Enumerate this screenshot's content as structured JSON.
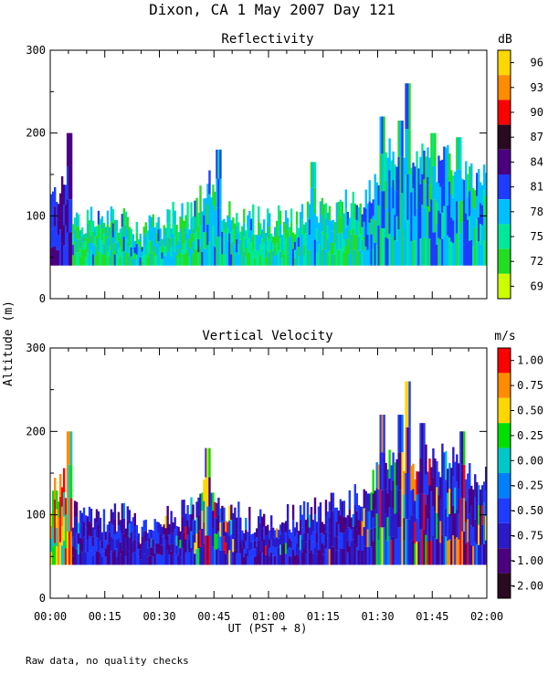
{
  "title": "Dixon, CA  1 May 2007  Day 121",
  "ylabel": "Altitude (m)",
  "xlabel": "UT  (PST + 8)",
  "footnote": "Raw data, no quality checks",
  "x_ticks": [
    "00:00",
    "00:15",
    "00:30",
    "00:45",
    "01:00",
    "01:15",
    "01:30",
    "01:45",
    "02:00"
  ],
  "chart_data": [
    {
      "type": "heatmap",
      "title": "Reflectivity",
      "xlabel": "UT  (PST + 8)",
      "ylabel": "Altitude (m)",
      "xlim_minutes": [
        0,
        120
      ],
      "ylim": [
        0,
        300
      ],
      "y_ticks": [
        0,
        100,
        200,
        300
      ],
      "colorbar": {
        "unit": "dB",
        "ticks": [
          "96",
          "93",
          "90",
          "87",
          "84",
          "81",
          "78",
          "75",
          "72",
          "69"
        ],
        "colors": [
          "#FFD700",
          "#FF8C00",
          "#FF0000",
          "#2A0A20",
          "#4B0082",
          "#1E3CFF",
          "#00BFFF",
          "#00E89A",
          "#22DD22",
          "#CCFF00"
        ]
      },
      "echo_top_profile": {
        "minutes": [
          0,
          2,
          4,
          5,
          6,
          8,
          10,
          15,
          20,
          25,
          30,
          35,
          38,
          40,
          42,
          44,
          45,
          47,
          50,
          55,
          60,
          65,
          70,
          75,
          80,
          85,
          88,
          90,
          92,
          94,
          95,
          97,
          100,
          102,
          104,
          106,
          108,
          110,
          112,
          115,
          118,
          120
        ],
        "top_m": [
          120,
          130,
          140,
          140,
          100,
          95,
          100,
          95,
          95,
          80,
          90,
          100,
          100,
          110,
          130,
          140,
          120,
          110,
          100,
          95,
          95,
          95,
          100,
          105,
          110,
          120,
          130,
          150,
          170,
          180,
          175,
          170,
          160,
          170,
          170,
          160,
          170,
          170,
          150,
          150,
          150,
          150
        ],
        "spikes": [
          {
            "minute": 5,
            "top_m": 200
          },
          {
            "minute": 46,
            "top_m": 180
          },
          {
            "minute": 72,
            "top_m": 165
          },
          {
            "minute": 91,
            "top_m": 220
          },
          {
            "minute": 96,
            "top_m": 215
          },
          {
            "minute": 98,
            "top_m": 260
          },
          {
            "minute": 105,
            "top_m": 200
          },
          {
            "minute": 112,
            "top_m": 195
          }
        ]
      },
      "base_m": 40
    },
    {
      "type": "heatmap",
      "title": "Vertical Velocity",
      "xlabel": "UT  (PST + 8)",
      "ylabel": "Altitude (m)",
      "xlim_minutes": [
        0,
        120
      ],
      "ylim": [
        0,
        300
      ],
      "y_ticks": [
        0,
        100,
        200,
        300
      ],
      "colorbar": {
        "unit": "m/s",
        "ticks": [
          "1.00",
          "0.75",
          "0.50",
          "0.25",
          "0.00",
          "-0.25",
          "-0.50",
          "-0.75",
          "-1.00",
          "-2.00"
        ],
        "colors": [
          "#FF0000",
          "#FF8C00",
          "#FFD700",
          "#00E000",
          "#00C8C8",
          "#0080FF",
          "#1E3CFF",
          "#2A1AC8",
          "#4B0082",
          "#2A0A20"
        ]
      },
      "echo_top_profile": {
        "minutes": [
          0,
          2,
          4,
          5,
          6,
          8,
          10,
          15,
          20,
          25,
          30,
          35,
          38,
          40,
          42,
          44,
          45,
          47,
          50,
          55,
          60,
          65,
          70,
          75,
          80,
          85,
          88,
          90,
          92,
          94,
          95,
          97,
          100,
          102,
          104,
          106,
          108,
          110,
          112,
          115,
          118,
          120
        ],
        "top_m": [
          120,
          130,
          140,
          140,
          100,
          95,
          100,
          95,
          95,
          80,
          90,
          100,
          100,
          110,
          130,
          140,
          120,
          110,
          100,
          95,
          95,
          95,
          100,
          105,
          110,
          120,
          130,
          150,
          170,
          180,
          175,
          170,
          160,
          170,
          170,
          160,
          170,
          170,
          150,
          150,
          150,
          150
        ],
        "spikes": [
          {
            "minute": 5,
            "top_m": 200
          },
          {
            "minute": 43,
            "top_m": 180
          },
          {
            "minute": 91,
            "top_m": 220
          },
          {
            "minute": 96,
            "top_m": 220
          },
          {
            "minute": 98,
            "top_m": 260
          },
          {
            "minute": 102,
            "top_m": 210
          },
          {
            "minute": 113,
            "top_m": 200
          }
        ]
      },
      "base_m": 40
    }
  ]
}
